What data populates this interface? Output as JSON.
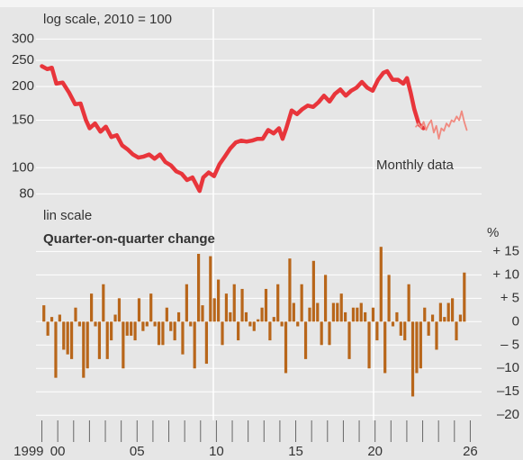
{
  "chart_data": [
    {
      "type": "line",
      "annotations": [
        "log scale, 2010 = 100"
      ],
      "log_scale": true,
      "grid": true,
      "xlim": [
        1998.8,
        2026.6
      ],
      "ylim": [
        76,
        330
      ],
      "yticks": [
        80,
        100,
        150,
        200,
        250,
        300
      ],
      "series": [
        {
          "color": "#e8353b",
          "x": [
            1999.0,
            1999.34,
            1999.63,
            1999.91,
            2000.31,
            2000.71,
            2001.1,
            2001.44,
            2001.78,
            2002.01,
            2002.35,
            2002.69,
            2003.03,
            2003.38,
            2003.72,
            2004.06,
            2004.4,
            2004.74,
            2005.08,
            2005.42,
            2005.76,
            2006.1,
            2006.44,
            2006.78,
            2007.13,
            2007.47,
            2007.81,
            2008.15,
            2008.49,
            2008.94,
            2009.17,
            2009.51,
            2009.85,
            2010.19,
            2010.53,
            2010.88,
            2011.22,
            2011.56,
            2011.9,
            2012.24,
            2012.58,
            2012.92,
            2013.26,
            2013.6,
            2013.94,
            2014.17,
            2014.4,
            2014.74,
            2015.08,
            2015.42,
            2015.76,
            2016.1,
            2016.44,
            2016.78,
            2017.13,
            2017.47,
            2017.81,
            2018.15,
            2018.49,
            2018.83,
            2019.17,
            2019.51,
            2019.85,
            2020.19,
            2020.53,
            2020.76,
            2021.1,
            2021.44,
            2021.78,
            2022.01,
            2022.24,
            2022.47,
            2022.76,
            2023.04
          ],
          "values": [
            238,
            232,
            235,
            205,
            207,
            190,
            172,
            173,
            150,
            140,
            146,
            136,
            142,
            130,
            132,
            121,
            117,
            112,
            109,
            110,
            112,
            108,
            112,
            105,
            102,
            97,
            95,
            90,
            92,
            82,
            92,
            96,
            93,
            103,
            110,
            118,
            124,
            126,
            125,
            126,
            128,
            128,
            138,
            134,
            140,
            128,
            140,
            163,
            158,
            165,
            170,
            168,
            175,
            185,
            176,
            188,
            195,
            185,
            193,
            198,
            208,
            198,
            193,
            212,
            225,
            228,
            212,
            212,
            205,
            215,
            190,
            165,
            145,
            140
          ]
        },
        {
          "name": "Monthly data",
          "color": "#f08a80",
          "x": [
            2022.58,
            2022.74,
            2022.9,
            2023.06,
            2023.22,
            2023.38,
            2023.54,
            2023.7,
            2023.86,
            2024.02,
            2024.18,
            2024.34,
            2024.5,
            2024.66,
            2024.82,
            2024.98,
            2025.14,
            2025.3,
            2025.46,
            2025.62,
            2025.78
          ],
          "values": [
            142,
            146,
            140,
            148,
            138,
            145,
            150,
            135,
            143,
            128,
            140,
            137,
            146,
            142,
            150,
            148,
            155,
            150,
            162,
            148,
            138
          ]
        }
      ]
    },
    {
      "type": "bar",
      "title": "Quarter-on-quarter change",
      "annotations": [
        "lin scale"
      ],
      "y_unit": "%",
      "grid": true,
      "color": "#b8661a",
      "xlim": [
        1998.8,
        2026.6
      ],
      "xticks": [
        1999,
        {
          "value": 2000,
          "label": "00"
        },
        {
          "value": 2005,
          "label": "05"
        },
        {
          "value": 2010,
          "label": "10"
        },
        {
          "value": 2015,
          "label": "15"
        },
        {
          "value": 2020,
          "label": "20"
        },
        {
          "value": 2026,
          "label": "26"
        }
      ],
      "minor_xticks": [
        1999,
        2000,
        2001,
        2002,
        2003,
        2004,
        2005,
        2006,
        2007,
        2008,
        2009,
        2010,
        2011,
        2012,
        2013,
        2014,
        2015,
        2016,
        2017,
        2018,
        2019,
        2020,
        2021,
        2022,
        2023,
        2024,
        2025,
        2026
      ],
      "ylim": [
        -21.5,
        17
      ],
      "yticks": [
        {
          "value": 15,
          "label": "+ 15"
        },
        {
          "value": 10,
          "label": "+ 10"
        },
        {
          "value": 5,
          "label": "+ 5"
        },
        0,
        {
          "value": -5,
          "label": "– 5"
        },
        {
          "value": -10,
          "label": "–10"
        },
        {
          "value": -15,
          "label": "–15"
        },
        {
          "value": -20,
          "label": "–20"
        }
      ],
      "x": [
        1999.125,
        1999.375,
        1999.625,
        1999.875,
        2000.125,
        2000.375,
        2000.625,
        2000.875,
        2001.125,
        2001.375,
        2001.625,
        2001.875,
        2002.125,
        2002.375,
        2002.625,
        2002.875,
        2003.125,
        2003.375,
        2003.625,
        2003.875,
        2004.125,
        2004.375,
        2004.625,
        2004.875,
        2005.125,
        2005.375,
        2005.625,
        2005.875,
        2006.125,
        2006.375,
        2006.625,
        2006.875,
        2007.125,
        2007.375,
        2007.625,
        2007.875,
        2008.125,
        2008.375,
        2008.625,
        2008.875,
        2009.125,
        2009.375,
        2009.625,
        2009.875,
        2010.125,
        2010.375,
        2010.625,
        2010.875,
        2011.125,
        2011.375,
        2011.625,
        2011.875,
        2012.125,
        2012.375,
        2012.625,
        2012.875,
        2013.125,
        2013.375,
        2013.625,
        2013.875,
        2014.125,
        2014.375,
        2014.625,
        2014.875,
        2015.125,
        2015.375,
        2015.625,
        2015.875,
        2016.125,
        2016.375,
        2016.625,
        2016.875,
        2017.125,
        2017.375,
        2017.625,
        2017.875,
        2018.125,
        2018.375,
        2018.625,
        2018.875,
        2019.125,
        2019.375,
        2019.625,
        2019.875,
        2020.125,
        2020.375,
        2020.625,
        2020.875,
        2021.125,
        2021.375,
        2021.625,
        2021.875,
        2022.125,
        2022.375,
        2022.625,
        2022.875,
        2023.125,
        2023.375,
        2023.625,
        2023.875,
        2024.125,
        2024.375,
        2024.625,
        2024.875,
        2025.125,
        2025.375,
        2025.625
      ],
      "values": [
        3.5,
        -3,
        1,
        -12,
        1.5,
        -6,
        -7,
        -8,
        3,
        -1,
        -12,
        -10,
        6,
        -1,
        -8,
        8,
        -8,
        -4,
        1.5,
        5,
        -10,
        -3,
        -3,
        -4,
        5,
        -2,
        -1,
        6,
        -1,
        -5,
        -5,
        3,
        -2,
        -4,
        2,
        -7,
        8,
        -1,
        -10,
        14.5,
        3.5,
        -9,
        14,
        5,
        9,
        -5,
        6,
        2,
        8,
        -4,
        7,
        2,
        -1,
        -2,
        0.5,
        3,
        7,
        -4,
        1,
        8,
        -1,
        -11,
        13.5,
        4,
        -1,
        8,
        -8,
        3,
        13,
        4,
        -5,
        10,
        -5,
        4,
        4,
        6,
        2,
        -8,
        3,
        3,
        4,
        2,
        -10,
        3,
        -4,
        16,
        -11,
        10,
        -1,
        2,
        -3,
        -4,
        8,
        -16,
        -11,
        -10,
        3,
        -3,
        1.5,
        -6,
        4,
        1,
        4,
        5,
        -4,
        1.5,
        10.5
      ]
    }
  ]
}
